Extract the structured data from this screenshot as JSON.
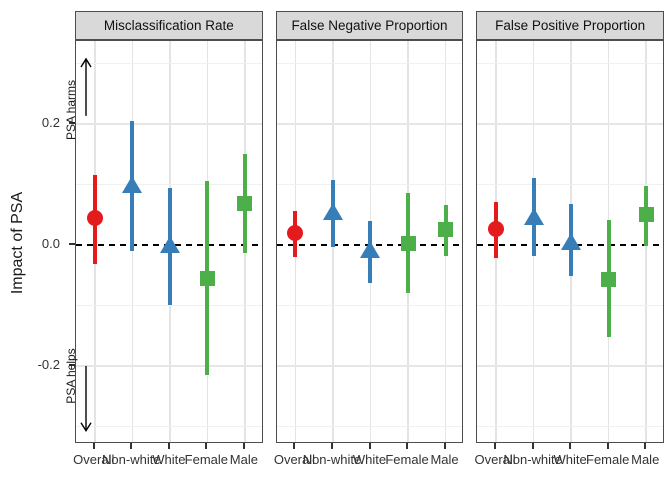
{
  "chart_data": {
    "type": "scatter",
    "subtype": "pointrange-faceted",
    "title": "",
    "ylabel": "Impact of PSA",
    "xlabel": "",
    "categories": [
      "Overall",
      "Non-white",
      "White",
      "Female",
      "Male"
    ],
    "y_ticks": [
      {
        "value": 0.2,
        "label": "0.2"
      },
      {
        "value": 0.0,
        "label": "0.0"
      },
      {
        "value": -0.2,
        "label": "-0.2"
      }
    ],
    "ylim": [
      -0.337,
      0.337
    ],
    "major_gridlines": [
      0.2,
      -0.2
    ],
    "minor_gridlines": [
      0.3,
      0.1,
      -0.1,
      -0.3
    ],
    "reference_line": {
      "y": 0.0,
      "style": "dashed",
      "color": "#000000"
    },
    "legend_position": "none",
    "grid": true,
    "group_styles": {
      "Overall": {
        "shape": "circle",
        "color": "#E41A1C"
      },
      "Non-white": {
        "shape": "triangle",
        "color": "#377EB8"
      },
      "White": {
        "shape": "triangle",
        "color": "#377EB8"
      },
      "Female": {
        "shape": "square",
        "color": "#4DAF4A"
      },
      "Male": {
        "shape": "square",
        "color": "#4DAF4A"
      }
    },
    "panels": [
      {
        "title": "Misclassification Rate",
        "points": [
          {
            "group": "Overall",
            "estimate": 0.045,
            "lower": -0.031,
            "upper": 0.116
          },
          {
            "group": "Non-white",
            "estimate": 0.1,
            "lower": -0.01,
            "upper": 0.205
          },
          {
            "group": "White",
            "estimate": 0.0,
            "lower": -0.1,
            "upper": 0.095
          },
          {
            "group": "Female",
            "estimate": -0.055,
            "lower": -0.215,
            "upper": 0.105
          },
          {
            "group": "Male",
            "estimate": 0.068,
            "lower": -0.013,
            "upper": 0.15
          }
        ]
      },
      {
        "title": "False Negative Proportion",
        "points": [
          {
            "group": "Overall",
            "estimate": 0.02,
            "lower": -0.02,
            "upper": 0.057
          },
          {
            "group": "Non-white",
            "estimate": 0.055,
            "lower": -0.003,
            "upper": 0.108
          },
          {
            "group": "White",
            "estimate": -0.008,
            "lower": -0.063,
            "upper": 0.04
          },
          {
            "group": "Female",
            "estimate": 0.003,
            "lower": -0.08,
            "upper": 0.086
          },
          {
            "group": "Male",
            "estimate": 0.025,
            "lower": -0.018,
            "upper": 0.066
          }
        ]
      },
      {
        "title": "False Positive Proportion",
        "points": [
          {
            "group": "Overall",
            "estimate": 0.026,
            "lower": -0.021,
            "upper": 0.071
          },
          {
            "group": "Non-white",
            "estimate": 0.047,
            "lower": -0.019,
            "upper": 0.11
          },
          {
            "group": "White",
            "estimate": 0.005,
            "lower": -0.052,
            "upper": 0.068
          },
          {
            "group": "Female",
            "estimate": -0.057,
            "lower": -0.152,
            "upper": 0.041
          },
          {
            "group": "Male",
            "estimate": 0.05,
            "lower": -0.002,
            "upper": 0.098
          }
        ]
      }
    ],
    "annotations": [
      {
        "text": "PSA harms",
        "arrow": "up",
        "text_center_y": 0.222,
        "arrow_from": 0.213,
        "arrow_to": 0.307
      },
      {
        "text": "PSA helps",
        "arrow": "down",
        "text_center_y": -0.218,
        "arrow_from": -0.2,
        "arrow_to": -0.307
      }
    ],
    "theme": {
      "panel_header_bg": "#d9d9d9",
      "panel_border": "#4d4d4d",
      "grid_color": "#e6e6e6",
      "tick_color": "#333333",
      "text_color": "#1a1a1a"
    }
  }
}
